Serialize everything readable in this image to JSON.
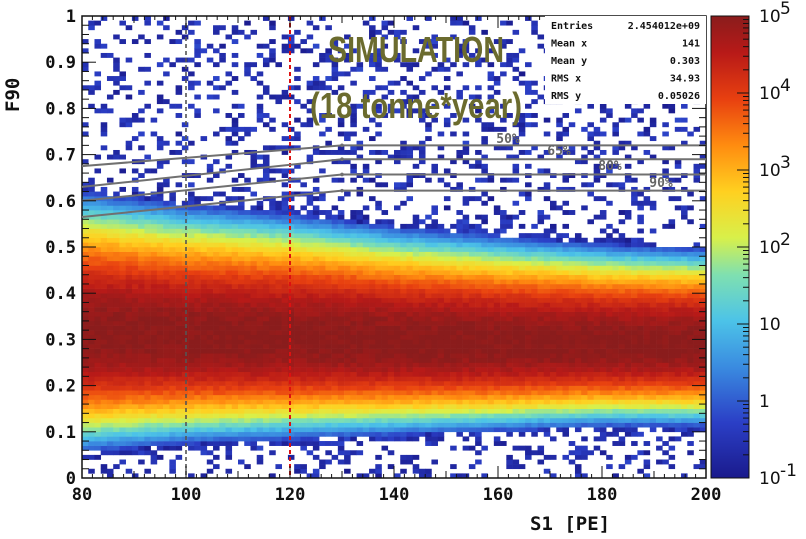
{
  "chart_data": {
    "type": "heatmap",
    "xlabel": "S1 [PE]",
    "ylabel": "F90",
    "xlim": [
      80,
      200
    ],
    "ylim": [
      0,
      1
    ],
    "x_ticks": [
      "80",
      "100",
      "120",
      "140",
      "160",
      "180",
      "200"
    ],
    "y_ticks": [
      "0",
      "0.1",
      "0.2",
      "0.3",
      "0.4",
      "0.5",
      "0.6",
      "0.7",
      "0.8",
      "0.9",
      "1"
    ],
    "colorbar": {
      "scale": "log",
      "range": [
        0.1,
        100000
      ],
      "labels": [
        {
          "base": "10",
          "exp": "-1"
        },
        {
          "base": "1",
          "exp": ""
        },
        {
          "base": "10",
          "exp": ""
        },
        {
          "base": "10",
          "exp": "2"
        },
        {
          "base": "10",
          "exp": "3"
        },
        {
          "base": "10",
          "exp": "4"
        },
        {
          "base": "10",
          "exp": "5"
        }
      ]
    },
    "band": {
      "description_values": "peak F90 and band half-widths vs S1",
      "x": [
        80,
        100,
        120,
        140,
        160,
        180,
        200
      ],
      "peak_f90": [
        0.31,
        0.305,
        0.3,
        0.295,
        0.29,
        0.29,
        0.29
      ],
      "upper_edge": [
        0.64,
        0.61,
        0.59,
        0.56,
        0.54,
        0.52,
        0.51
      ],
      "lower_edge": [
        0.04,
        0.06,
        0.07,
        0.08,
        0.09,
        0.1,
        0.1
      ]
    },
    "vertical_lines": [
      {
        "x": 100,
        "color": "#555555",
        "style": "dashed"
      },
      {
        "x": 120,
        "color": "#dd1111",
        "style": "dashed"
      }
    ],
    "acceptance_curves": [
      {
        "label": "50%",
        "points": [
          [
            80,
            0.675
          ],
          [
            130,
            0.72
          ],
          [
            200,
            0.72
          ]
        ]
      },
      {
        "label": "65%",
        "points": [
          [
            80,
            0.63
          ],
          [
            130,
            0.69
          ],
          [
            200,
            0.69
          ]
        ]
      },
      {
        "label": "80%",
        "points": [
          [
            80,
            0.6
          ],
          [
            130,
            0.657
          ],
          [
            200,
            0.657
          ]
        ]
      },
      {
        "label": "90%",
        "points": [
          [
            80,
            0.565
          ],
          [
            130,
            0.622
          ],
          [
            200,
            0.622
          ]
        ]
      }
    ],
    "annotation": {
      "line1": "SIMULATION",
      "line2": "(18 tonne*year)"
    },
    "stats": {
      "rows": [
        {
          "key": "Entries",
          "value": "2.454012e+09"
        },
        {
          "key": "Mean x",
          "value": "141"
        },
        {
          "key": "Mean y",
          "value": "0.303"
        },
        {
          "key": "RMS x",
          "value": "34.93"
        },
        {
          "key": "RMS y",
          "value": "0.05026"
        }
      ]
    }
  }
}
